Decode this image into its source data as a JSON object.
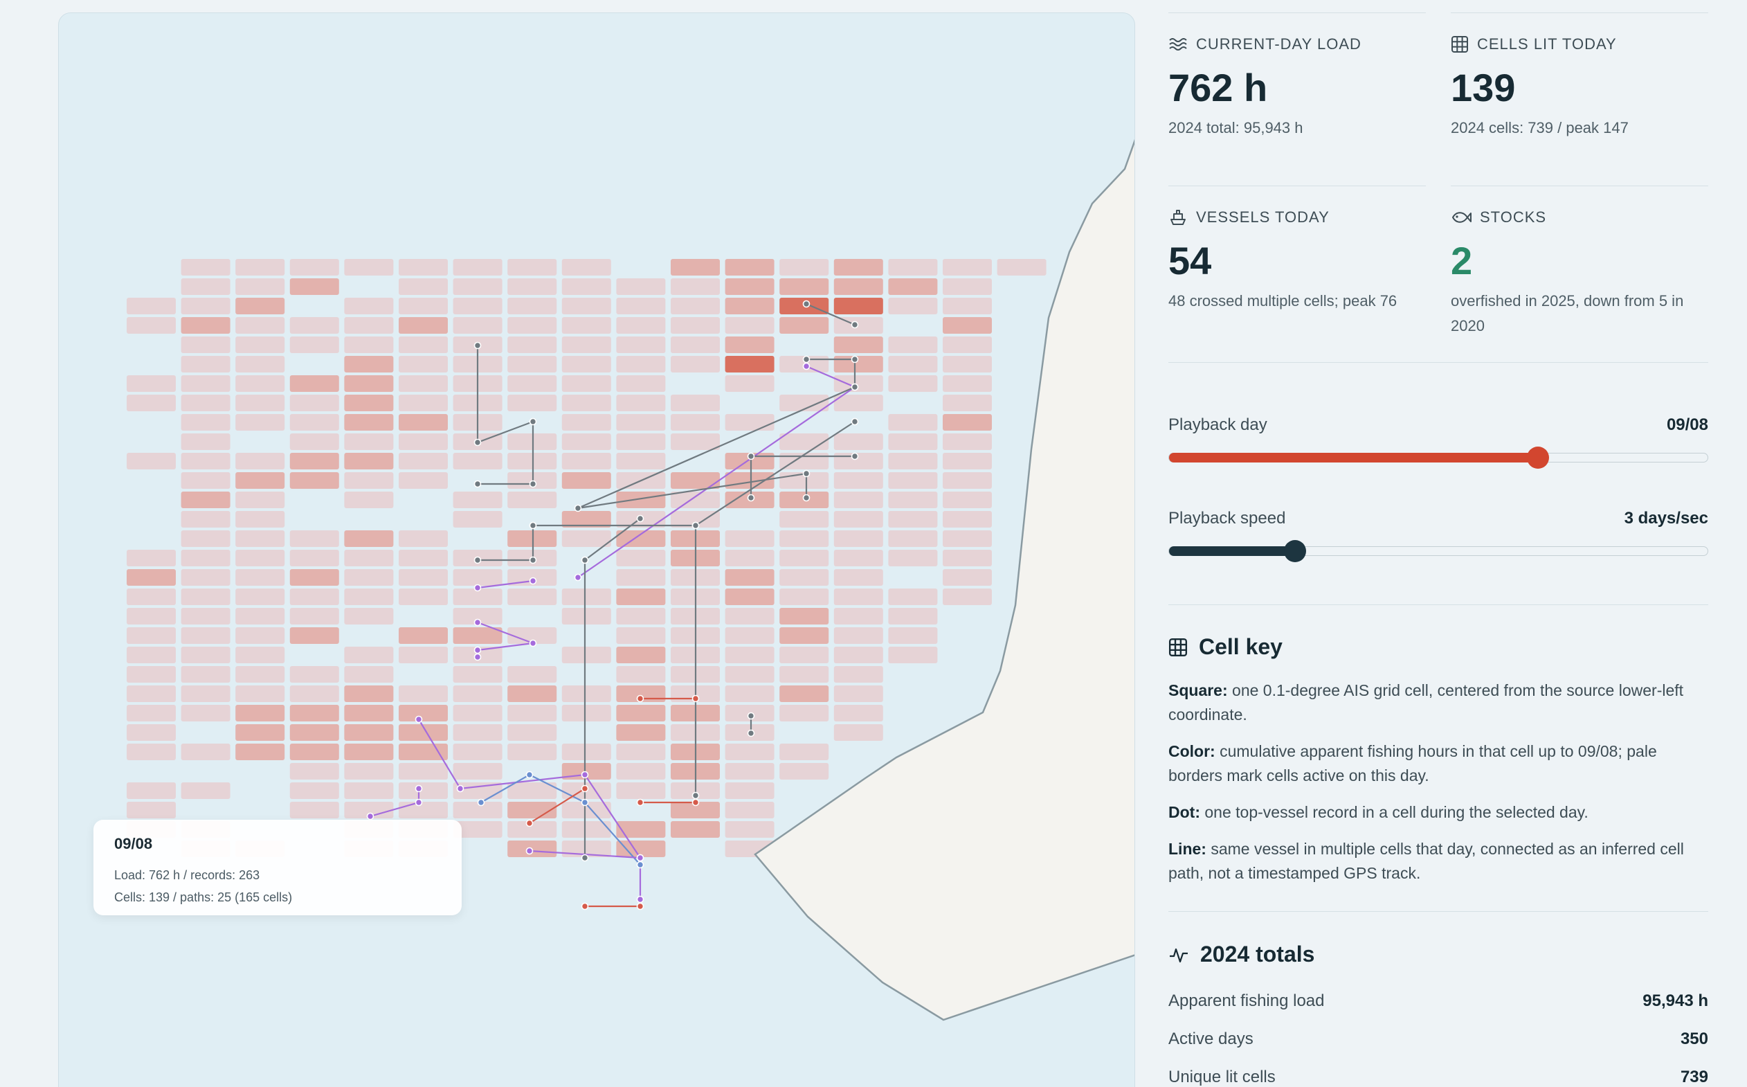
{
  "tooltip": {
    "date": "09/08",
    "load_line": "Load: 762 h / records: 263",
    "cells_line": "Cells: 139 / paths: 25 (165 cells)"
  },
  "stats": [
    {
      "icon": "waves-icon",
      "label": "CURRENT-DAY LOAD",
      "value": "762 h",
      "sub": "2024 total: 95,943 h",
      "accent": "#172a33"
    },
    {
      "icon": "grid-icon",
      "label": "CELLS LIT TODAY",
      "value": "139",
      "sub": "2024 cells: 739 / peak 147",
      "accent": "#172a33"
    },
    {
      "icon": "ship-icon",
      "label": "VESSELS TODAY",
      "value": "54",
      "sub": "48 crossed multiple cells; peak 76",
      "accent": "#172a33"
    },
    {
      "icon": "fish-icon",
      "label": "STOCKS",
      "value": "2",
      "sub": "overfished in 2025, down from 5 in 2020",
      "accent": "#2a8a68"
    }
  ],
  "playback_day": {
    "label": "Playback day",
    "value": "09/08",
    "fraction": 0.685,
    "color": "#d2462f"
  },
  "playback_speed": {
    "label": "Playback speed",
    "value": "3 days/sec",
    "fraction": 0.234,
    "color": "#1d3540"
  },
  "cell_key": {
    "title": "Cell key",
    "items": [
      {
        "term": "Square:",
        "text": " one 0.1-degree AIS grid cell, centered from the source lower-left coordinate."
      },
      {
        "term": "Color:",
        "text": " cumulative apparent fishing hours in that cell up to 09/08; pale borders mark cells active on this day."
      },
      {
        "term": "Dot:",
        "text": " one top-vessel record in a cell during the selected day."
      },
      {
        "term": "Line:",
        "text": " same vessel in multiple cells that day, connected as an inferred cell path, not a timestamped GPS track."
      }
    ]
  },
  "totals": {
    "title": "2024 totals",
    "rows": [
      {
        "label": "Apparent fishing load",
        "value": "95,943 h"
      },
      {
        "label": "Active days",
        "value": "350"
      },
      {
        "label": "Unique lit cells",
        "value": "739"
      }
    ]
  },
  "colors": {
    "land": "#f4f3ef",
    "coast": "#8a9aa1",
    "water": "#e0eef4",
    "cell_pale": "#e6d3d6",
    "cell_mid": "#e3b2ad",
    "cell_hot": "#d9705f",
    "path_purple": "#a56bdc",
    "path_gray": "#707a80",
    "path_red": "#d55a4a",
    "path_blue": "#6a8fd0"
  }
}
